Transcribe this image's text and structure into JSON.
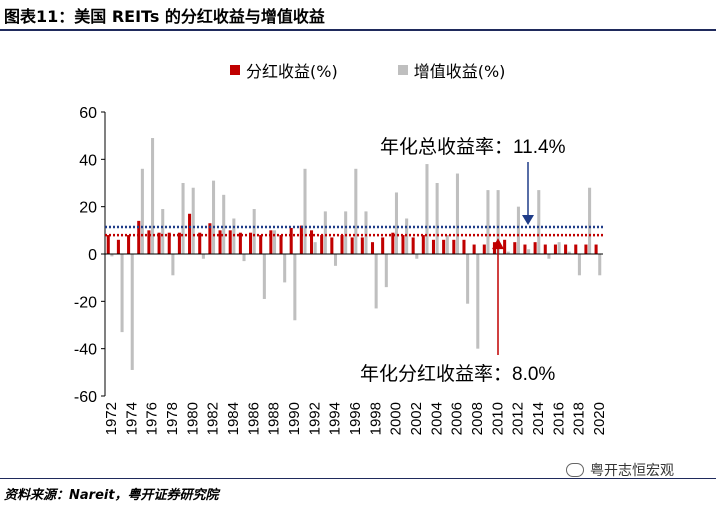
{
  "figure": {
    "title": "图表11：美国 REITs 的分红收益与增值收益",
    "source": "资料来源：Nareit，粤开证券研究院",
    "watermark": "粤开志恒宏观"
  },
  "chart_data": {
    "type": "bar",
    "title": "",
    "xlabel": "",
    "ylabel": "",
    "ylim": [
      -60,
      60
    ],
    "yticks": [
      60,
      40,
      20,
      0,
      -20,
      -40,
      -60
    ],
    "x": [
      1972,
      1973,
      1974,
      1975,
      1976,
      1977,
      1978,
      1979,
      1980,
      1981,
      1982,
      1983,
      1984,
      1985,
      1986,
      1987,
      1988,
      1989,
      1990,
      1991,
      1992,
      1993,
      1994,
      1995,
      1996,
      1997,
      1998,
      1999,
      2000,
      2001,
      2002,
      2003,
      2004,
      2005,
      2006,
      2007,
      2008,
      2009,
      2010,
      2011,
      2012,
      2013,
      2014,
      2015,
      2016,
      2017,
      2018,
      2019,
      2020
    ],
    "xtick_labels": [
      "1972",
      "1974",
      "1976",
      "1978",
      "1980",
      "1982",
      "1984",
      "1986",
      "1988",
      "1990",
      "1992",
      "1994",
      "1996",
      "1998",
      "2000",
      "2002",
      "2004",
      "2006",
      "2008",
      "2010",
      "2012",
      "2014",
      "2016",
      "2018",
      "2020"
    ],
    "series": [
      {
        "name": "分红收益(%)",
        "color": "#c00000",
        "values": [
          8,
          6,
          8,
          14,
          10,
          9,
          9,
          9,
          17,
          9,
          13,
          10,
          10,
          9,
          9,
          8,
          10,
          8,
          11,
          12,
          10,
          8,
          7,
          8,
          7,
          7,
          5,
          7,
          9,
          8,
          7,
          8,
          6,
          6,
          6,
          6,
          4,
          4,
          5,
          6,
          5,
          4,
          5,
          4,
          4,
          4,
          4,
          4,
          4
        ]
      },
      {
        "name": "增值收益(%)",
        "color": "#bfbfbf",
        "values": [
          -1,
          -33,
          -49,
          36,
          49,
          19,
          -9,
          30,
          28,
          -2,
          31,
          25,
          15,
          -3,
          19,
          -19,
          10,
          -12,
          -28,
          36,
          5,
          18,
          -5,
          18,
          36,
          18,
          -23,
          -14,
          26,
          15,
          -2,
          38,
          30,
          8,
          34,
          -21,
          -40,
          27,
          27,
          1,
          20,
          2,
          27,
          -2,
          5,
          1,
          -9,
          28,
          -9
        ]
      }
    ],
    "annotations": [
      {
        "text": "年化总收益率：11.4%",
        "value": 11.4,
        "color": "#1f3c88",
        "line_color": "#1f3c88"
      },
      {
        "text": "年化分红收益率：8.0%",
        "value": 8.0,
        "color": "#c00000",
        "line_color": "#c00000"
      }
    ]
  }
}
